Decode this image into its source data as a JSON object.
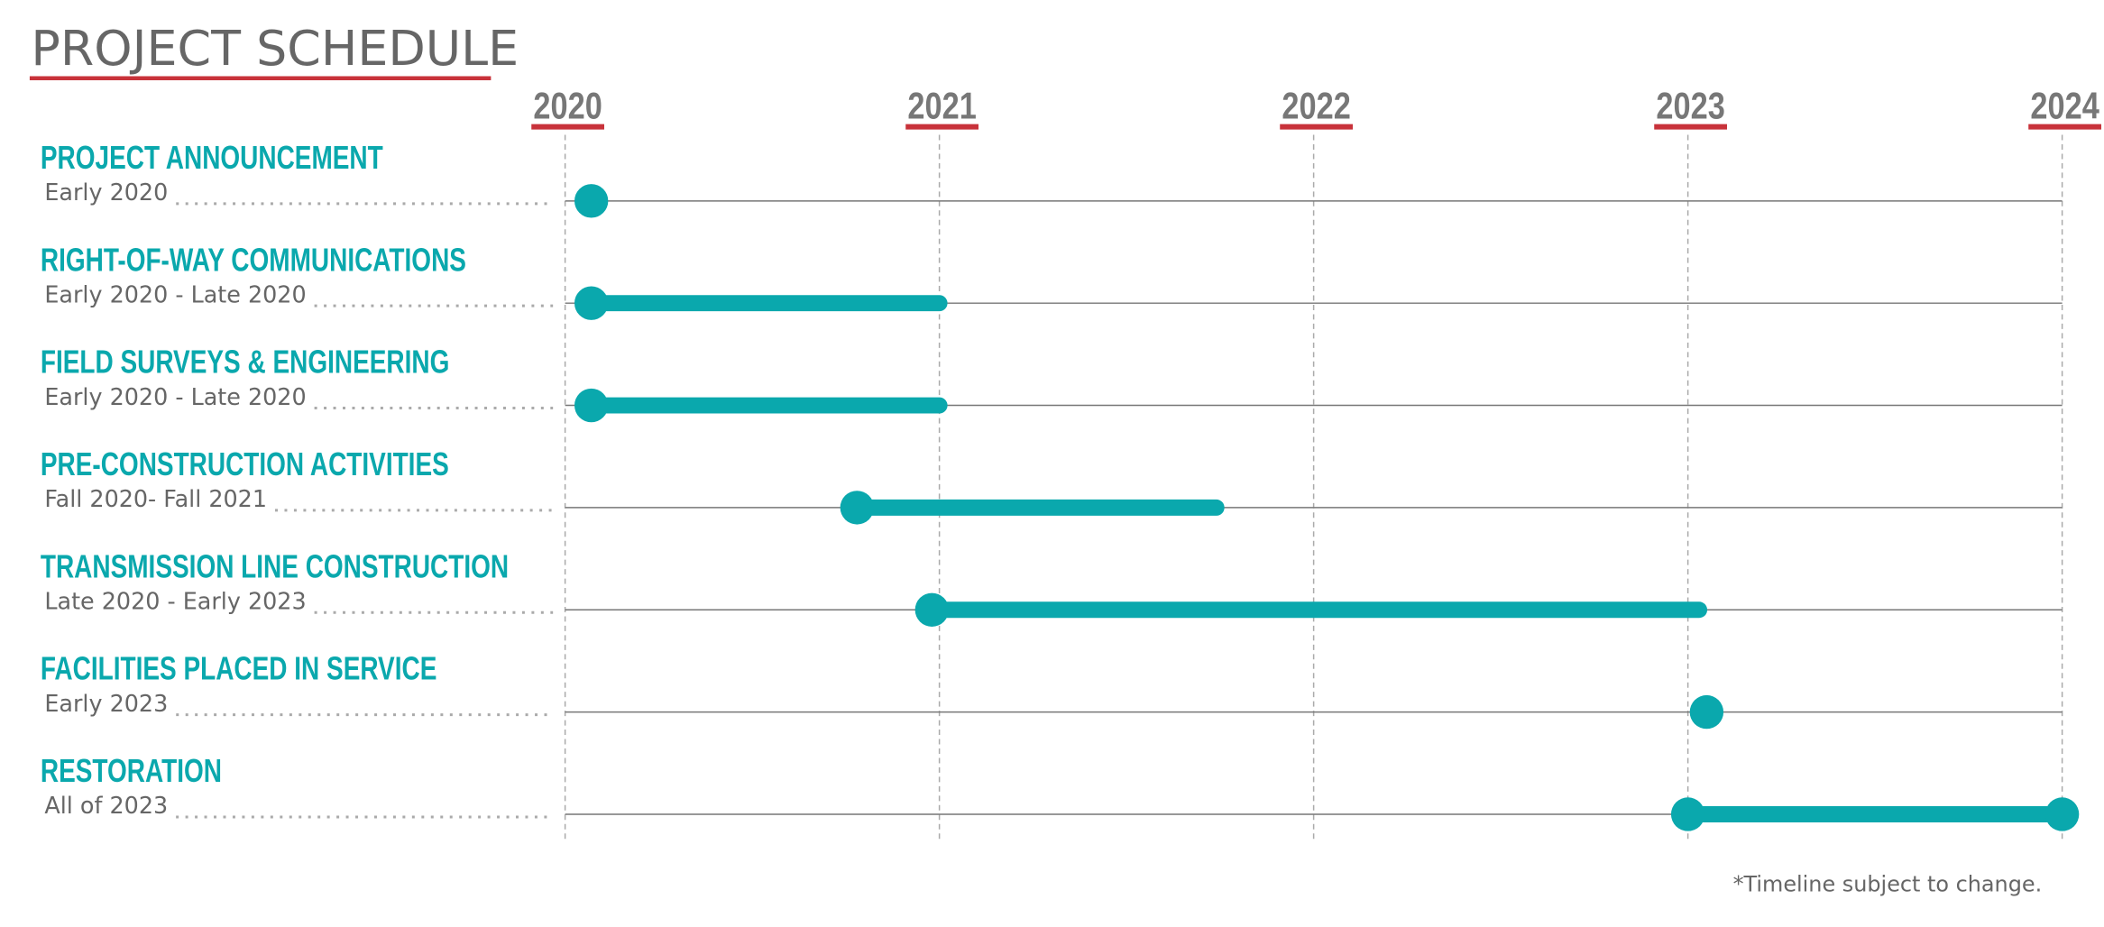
{
  "chart_data": {
    "type": "timeline",
    "title": "PROJECT SCHEDULE",
    "note": "*Timeline subject to change.",
    "color": "#0aa8ad",
    "accent": "#c8323a",
    "xlim": [
      2020,
      2024
    ],
    "xticks": [
      2020,
      2021,
      2022,
      2023,
      2024
    ],
    "grid": true,
    "tasks": [
      {
        "name": "PROJECT ANNOUNCEMENT",
        "dates": "Early 2020",
        "start": 2020.07,
        "end": null
      },
      {
        "name": "RIGHT-OF-WAY COMMUNICATIONS",
        "dates": "Early 2020 - Late 2020",
        "start": 2020.07,
        "end": 2021.0
      },
      {
        "name": "FIELD SURVEYS & ENGINEERING",
        "dates": "Early 2020 - Late 2020",
        "start": 2020.07,
        "end": 2021.0
      },
      {
        "name": "PRE-CONSTRUCTION ACTIVITIES",
        "dates": "Fall 2020- Fall 2021",
        "start": 2020.78,
        "end": 2021.74
      },
      {
        "name": "TRANSMISSION LINE CONSTRUCTION",
        "dates": "Late 2020 - Early 2023",
        "start": 2020.98,
        "end": 2023.03
      },
      {
        "name": "FACILITIES PLACED IN SERVICE",
        "dates": "Early 2023",
        "start": 2023.05,
        "end": null
      },
      {
        "name": "RESTORATION",
        "dates": "All of 2023",
        "start": 2023.0,
        "end": 2024.0,
        "end_dot": true
      }
    ]
  }
}
